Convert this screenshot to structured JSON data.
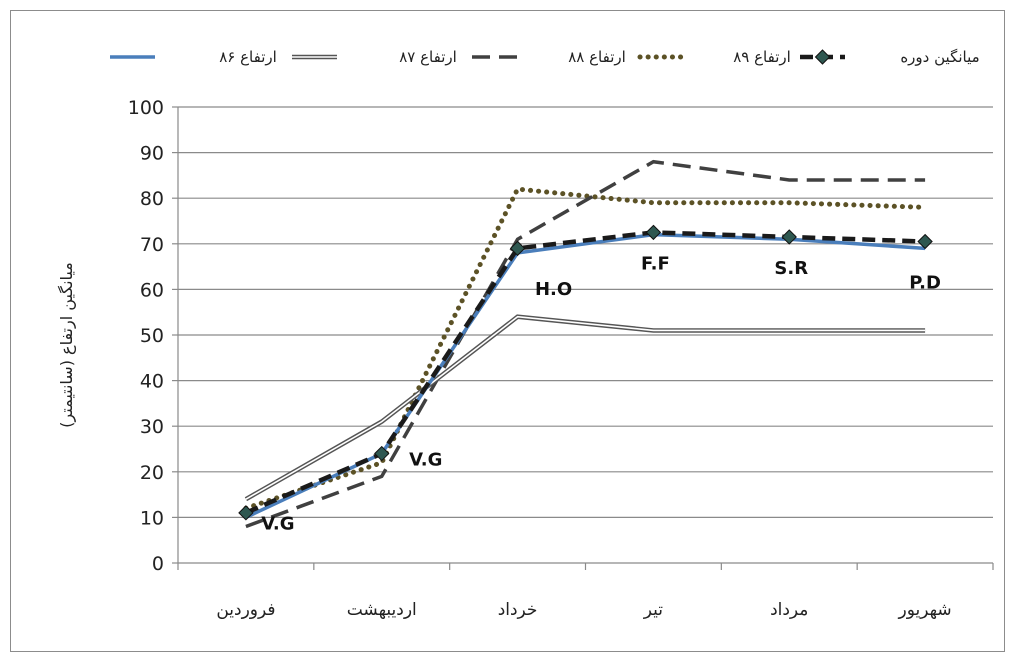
{
  "chart_data": {
    "type": "line",
    "title": "",
    "xlabel": "",
    "ylabel": "میانگین ارتفاع (سانتیمتر)",
    "ylim": [
      0,
      100
    ],
    "yticks": [
      0,
      10,
      20,
      30,
      40,
      50,
      60,
      70,
      80,
      90,
      100
    ],
    "grid": true,
    "legend_position": "top",
    "categories": [
      "فروردین",
      "اردیبهشت",
      "خرداد",
      "تیر",
      "مرداد",
      "شهریور"
    ],
    "series": [
      {
        "name": "ارتفاع ۸۶",
        "values": [
          10,
          24,
          68,
          72,
          71,
          69
        ],
        "color": "#4a7ebb",
        "style": "solid"
      },
      {
        "name": "ارتفاع ۸۷",
        "values": [
          14,
          31,
          54,
          51,
          51,
          51
        ],
        "color": "#555555",
        "style": "double"
      },
      {
        "name": "ارتفاع ۸۸",
        "values": [
          8,
          19,
          71,
          88,
          84,
          84
        ],
        "color": "#404040",
        "style": "dashed"
      },
      {
        "name": "ارتفاع ۸۹",
        "values": [
          12,
          22,
          82,
          79,
          79,
          78
        ],
        "color": "#5c5226",
        "style": "dotted"
      },
      {
        "name": "میانگین دوره",
        "values": [
          11,
          24,
          69,
          72.5,
          71.5,
          70.5
        ],
        "color": "#1a1a1a",
        "style": "bold-dashed-diamond"
      }
    ],
    "annotations": [
      {
        "text": "V.G",
        "category_index": 0,
        "value": 10
      },
      {
        "text": "V.G",
        "category_index": 1,
        "value": 24
      },
      {
        "text": "H.O",
        "category_index": 2,
        "value": 68
      },
      {
        "text": "F.F",
        "category_index": 3,
        "value": 72
      },
      {
        "text": "S.R",
        "category_index": 4,
        "value": 71
      },
      {
        "text": "P.D",
        "category_index": 5,
        "value": 69
      }
    ]
  }
}
